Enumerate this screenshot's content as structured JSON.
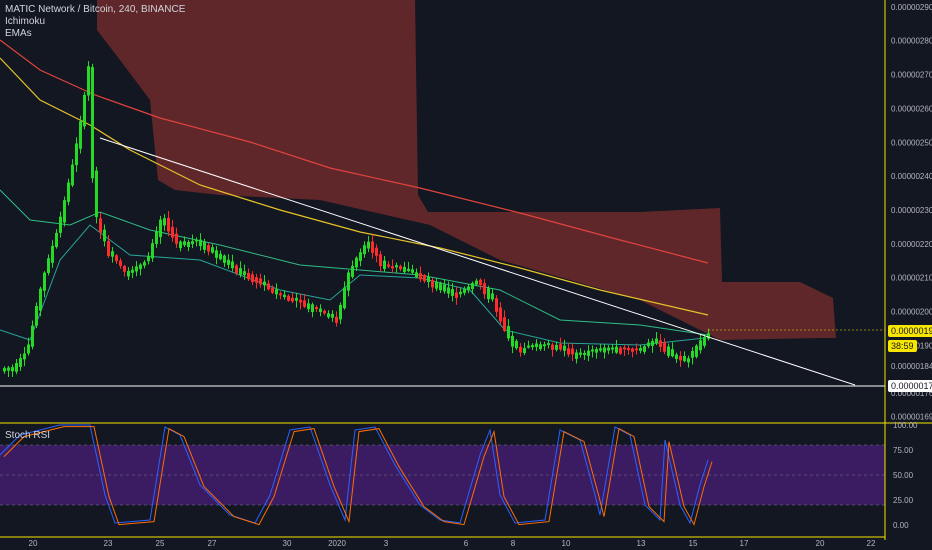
{
  "title_line": "MATIC Network / Bitcoin, 240, BINANCE",
  "indicators": [
    "Ichimoku",
    "EMAs"
  ],
  "oscillator_label": "Stoch RSI",
  "price_tags": {
    "current": "0.00000190",
    "timer": "38:59",
    "support": "0.00000173"
  },
  "colors": {
    "up": "#26d926",
    "down": "#ff2a2a",
    "ema_red": "#e0433d",
    "ema_yellow": "#e6c229",
    "ema_green": "#2ebd85",
    "ema_teal": "#26a69a",
    "cloud": "#7a2e2e",
    "trendline": "#ffffff",
    "stoch_k": "#2962ff",
    "stoch_d": "#ff6d00",
    "stoch_band": "#4a1f7a"
  },
  "chart_data": {
    "type": "candlestick",
    "x_ticks": [
      "20",
      "23",
      "25",
      "27",
      "30",
      "2020",
      "3",
      "6",
      "8",
      "10",
      "13",
      "15",
      "17",
      "20",
      "22"
    ],
    "price_axis": {
      "labels": [
        "0.00000290",
        "0.00000280",
        "0.00000270",
        "0.00000260",
        "0.00000250",
        "0.00000240",
        "0.00000230",
        "0.00000220",
        "0.00000210",
        "0.00000200",
        "0.00000190",
        "0.00000184",
        "0.00000176",
        "0.00000169"
      ],
      "ylim": [
        1.68e-06,
        2.92e-06
      ]
    },
    "stoch_axis": {
      "labels": [
        "100.00",
        "75.00",
        "50.00",
        "25.00",
        "0.00"
      ],
      "ylim": [
        0,
        100
      ]
    }
  }
}
